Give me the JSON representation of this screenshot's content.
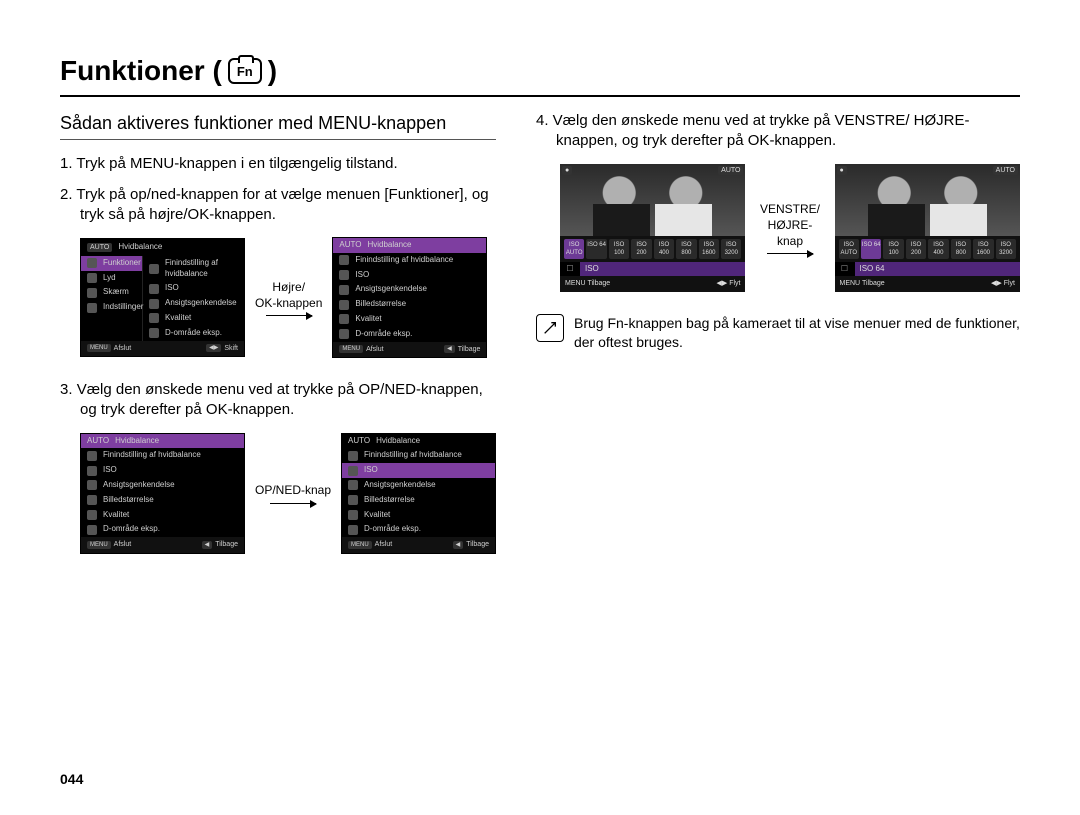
{
  "title_prefix": "Funktioner (",
  "title_suffix": ")",
  "fn_icon_label": "Fn",
  "subtitle": "Sådan aktiveres funktioner med MENU-knappen",
  "steps": {
    "s1": "Tryk på MENU-knappen i en tilgængelig tilstand.",
    "s2": "Tryk på op/ned-knappen for at vælge menuen [Funktioner], og tryk så på højre/OK-knappen.",
    "s3": "Vælg den ønskede menu ved at trykke på OP/NED-knappen, og tryk derefter på OK-knappen.",
    "s4": "Vælg den ønskede menu ved at trykke på VENSTRE/ HØJRE-knappen, og tryk derefter på OK-knappen."
  },
  "arrow_labels": {
    "a1": "Højre/\nOK-knappen",
    "a2": "OP/NED-knap",
    "a3": "VENSTRE/\nHØJRE-knap"
  },
  "lcd_common": {
    "items": {
      "hvidbalance": "Hvidbalance",
      "finind": "Finindstilling af hvidbalance",
      "iso": "ISO",
      "ansigt": "Ansigtsgenkendelse",
      "billed": "Billedstørrelse",
      "kvalitet": "Kvalitet",
      "domr": "D-område eksp."
    },
    "left_menu": {
      "funktioner": "Funktioner",
      "lyd": "Lyd",
      "skaerm": "Skærm",
      "indstil": "Indstillinger"
    },
    "footer": {
      "menu": "MENU",
      "afslut": "Afslut",
      "skift": "Skift",
      "tilbage": "Tilbage",
      "flyt": "Flyt"
    },
    "header_tag": "AUTO"
  },
  "photo_lcd": {
    "iso_label_left": "ISO",
    "iso_label_right": "ISO 64",
    "iso_chips": [
      "ISO AUTO",
      "ISO 64",
      "ISO 100",
      "ISO 200",
      "ISO 400",
      "ISO 800",
      "ISO 1600",
      "ISO 3200"
    ],
    "corner_left": "●",
    "corner_right": "AUTO"
  },
  "note_text": "Brug Fn-knappen bag på kameraet til at vise menuer med de funktioner, der oftest bruges.",
  "page_number": "044",
  "colors": {
    "purple": "#6d3a96"
  }
}
